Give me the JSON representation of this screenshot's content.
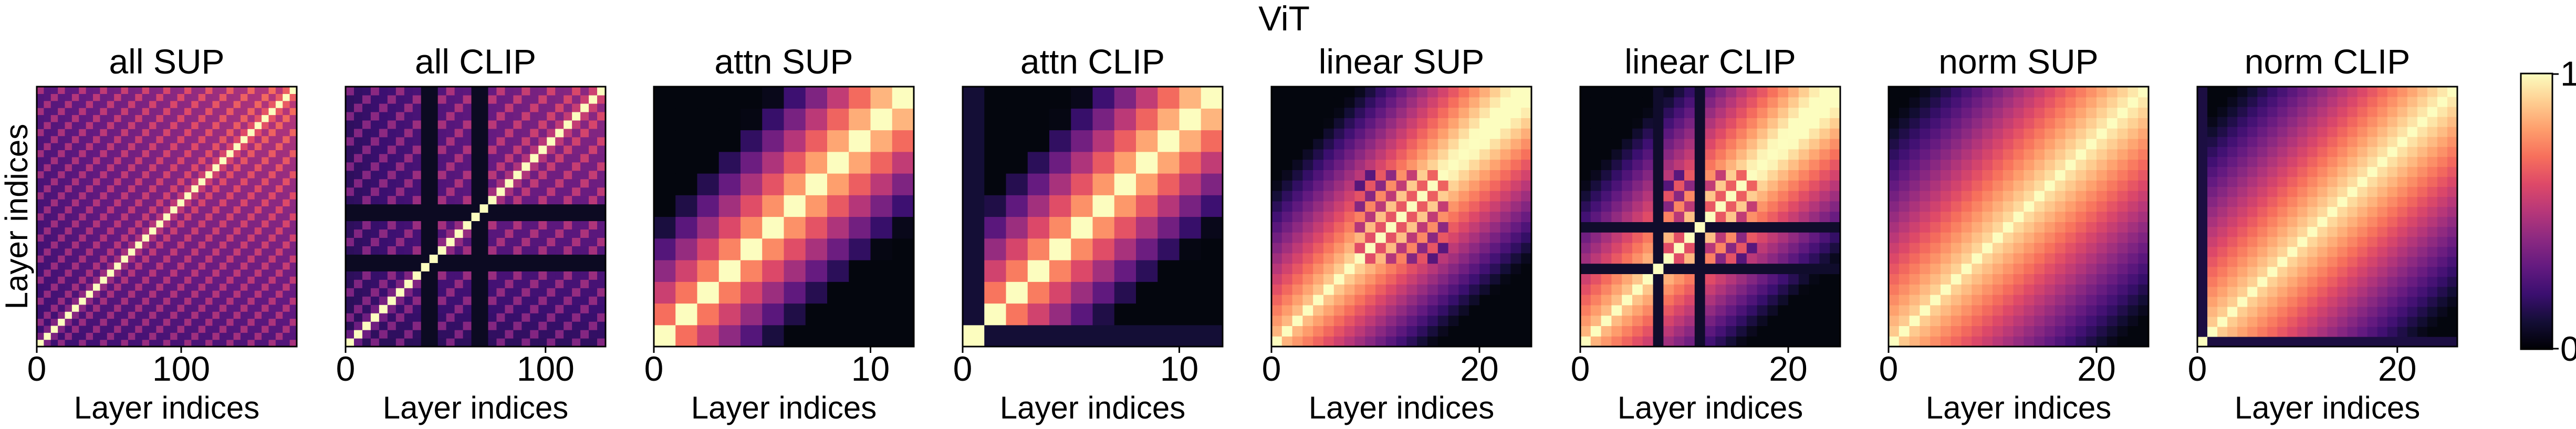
{
  "figure": {
    "suptitle": "ViT",
    "colorbar": {
      "tick_labels": [
        "0",
        "1"
      ],
      "colormap": "magma"
    }
  },
  "chart_data": [
    {
      "type": "heatmap",
      "title": "all SUP",
      "xlabel": "Layer indices",
      "ylabel": "Layer indices",
      "n": 37,
      "style": "all",
      "variant": "sup",
      "xticks": [
        {
          "value": 0,
          "label": "0"
        },
        {
          "value": 100,
          "label": "100"
        }
      ],
      "xlim": [
        0,
        180
      ],
      "clim": [
        0,
        1
      ]
    },
    {
      "type": "heatmap",
      "title": "all CLIP",
      "xlabel": "Layer indices",
      "ylabel": "",
      "n": 31,
      "style": "all",
      "variant": "clip",
      "xticks": [
        {
          "value": 0,
          "label": "0"
        },
        {
          "value": 100,
          "label": "100"
        }
      ],
      "xlim": [
        0,
        130
      ],
      "clim": [
        0,
        1
      ]
    },
    {
      "type": "heatmap",
      "title": "attn SUP",
      "xlabel": "Layer indices",
      "ylabel": "",
      "n": 12,
      "style": "attn",
      "variant": "sup",
      "xticks": [
        {
          "value": 0,
          "label": "0"
        },
        {
          "value": 10,
          "label": "10"
        }
      ],
      "xlim": [
        0,
        12
      ],
      "clim": [
        0,
        1
      ]
    },
    {
      "type": "heatmap",
      "title": "attn CLIP",
      "xlabel": "Layer indices",
      "ylabel": "",
      "n": 12,
      "style": "attn",
      "variant": "clip",
      "xticks": [
        {
          "value": 0,
          "label": "0"
        },
        {
          "value": 10,
          "label": "10"
        }
      ],
      "xlim": [
        0,
        12
      ],
      "clim": [
        0,
        1
      ]
    },
    {
      "type": "heatmap",
      "title": "linear SUP",
      "xlabel": "Layer indices",
      "ylabel": "",
      "n": 25,
      "style": "linear",
      "variant": "sup",
      "xticks": [
        {
          "value": 0,
          "label": "0"
        },
        {
          "value": 20,
          "label": "20"
        }
      ],
      "xlim": [
        0,
        25
      ],
      "clim": [
        0,
        1
      ]
    },
    {
      "type": "heatmap",
      "title": "linear CLIP",
      "xlabel": "Layer indices",
      "ylabel": "",
      "n": 25,
      "style": "linear",
      "variant": "clip",
      "xticks": [
        {
          "value": 0,
          "label": "0"
        },
        {
          "value": 20,
          "label": "20"
        }
      ],
      "xlim": [
        0,
        25
      ],
      "clim": [
        0,
        1
      ]
    },
    {
      "type": "heatmap",
      "title": "norm SUP",
      "xlabel": "Layer indices",
      "ylabel": "",
      "n": 25,
      "style": "norm",
      "variant": "sup",
      "xticks": [
        {
          "value": 0,
          "label": "0"
        },
        {
          "value": 20,
          "label": "20"
        }
      ],
      "xlim": [
        0,
        25
      ],
      "clim": [
        0,
        1
      ]
    },
    {
      "type": "heatmap",
      "title": "norm CLIP",
      "xlabel": "Layer indices",
      "ylabel": "",
      "n": 26,
      "style": "norm",
      "variant": "clip",
      "xticks": [
        {
          "value": 0,
          "label": "0"
        },
        {
          "value": 20,
          "label": "20"
        }
      ],
      "xlim": [
        0,
        26
      ],
      "clim": [
        0,
        1
      ]
    }
  ]
}
